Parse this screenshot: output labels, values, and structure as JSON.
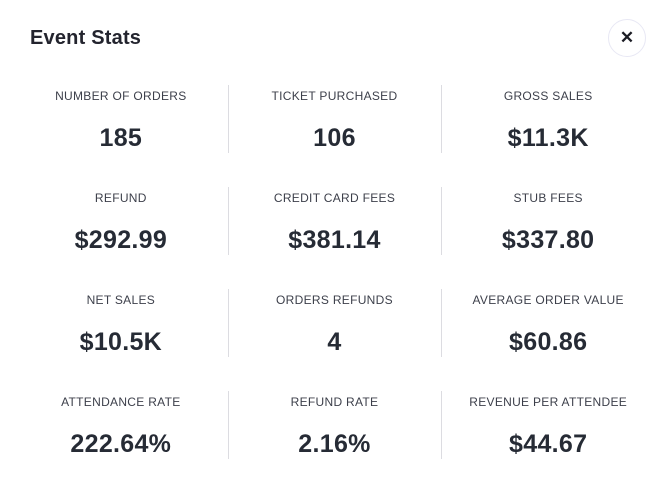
{
  "modal": {
    "title": "Event Stats",
    "close_icon": "✕"
  },
  "colors": {
    "background": "#ffffff",
    "title_text": "#23242e",
    "label_text": "#3c3f4a",
    "value_text": "#262b35",
    "divider": "#dcdce1",
    "close_button_border": "#e8e8f4"
  },
  "stats": [
    {
      "label": "NUMBER OF ORDERS",
      "value": "185"
    },
    {
      "label": "TICKET PURCHASED",
      "value": "106"
    },
    {
      "label": "GROSS SALES",
      "value": "$11.3K"
    },
    {
      "label": "REFUND",
      "value": "$292.99"
    },
    {
      "label": "CREDIT CARD FEES",
      "value": "$381.14"
    },
    {
      "label": "STUB FEES",
      "value": "$337.80"
    },
    {
      "label": "NET SALES",
      "value": "$10.5K"
    },
    {
      "label": "ORDERS REFUNDS",
      "value": "4"
    },
    {
      "label": "AVERAGE ORDER VALUE",
      "value": "$60.86"
    },
    {
      "label": "ATTENDANCE RATE",
      "value": "222.64%"
    },
    {
      "label": "REFUND RATE",
      "value": "2.16%"
    },
    {
      "label": "REVENUE PER ATTENDEE",
      "value": "$44.67"
    }
  ]
}
